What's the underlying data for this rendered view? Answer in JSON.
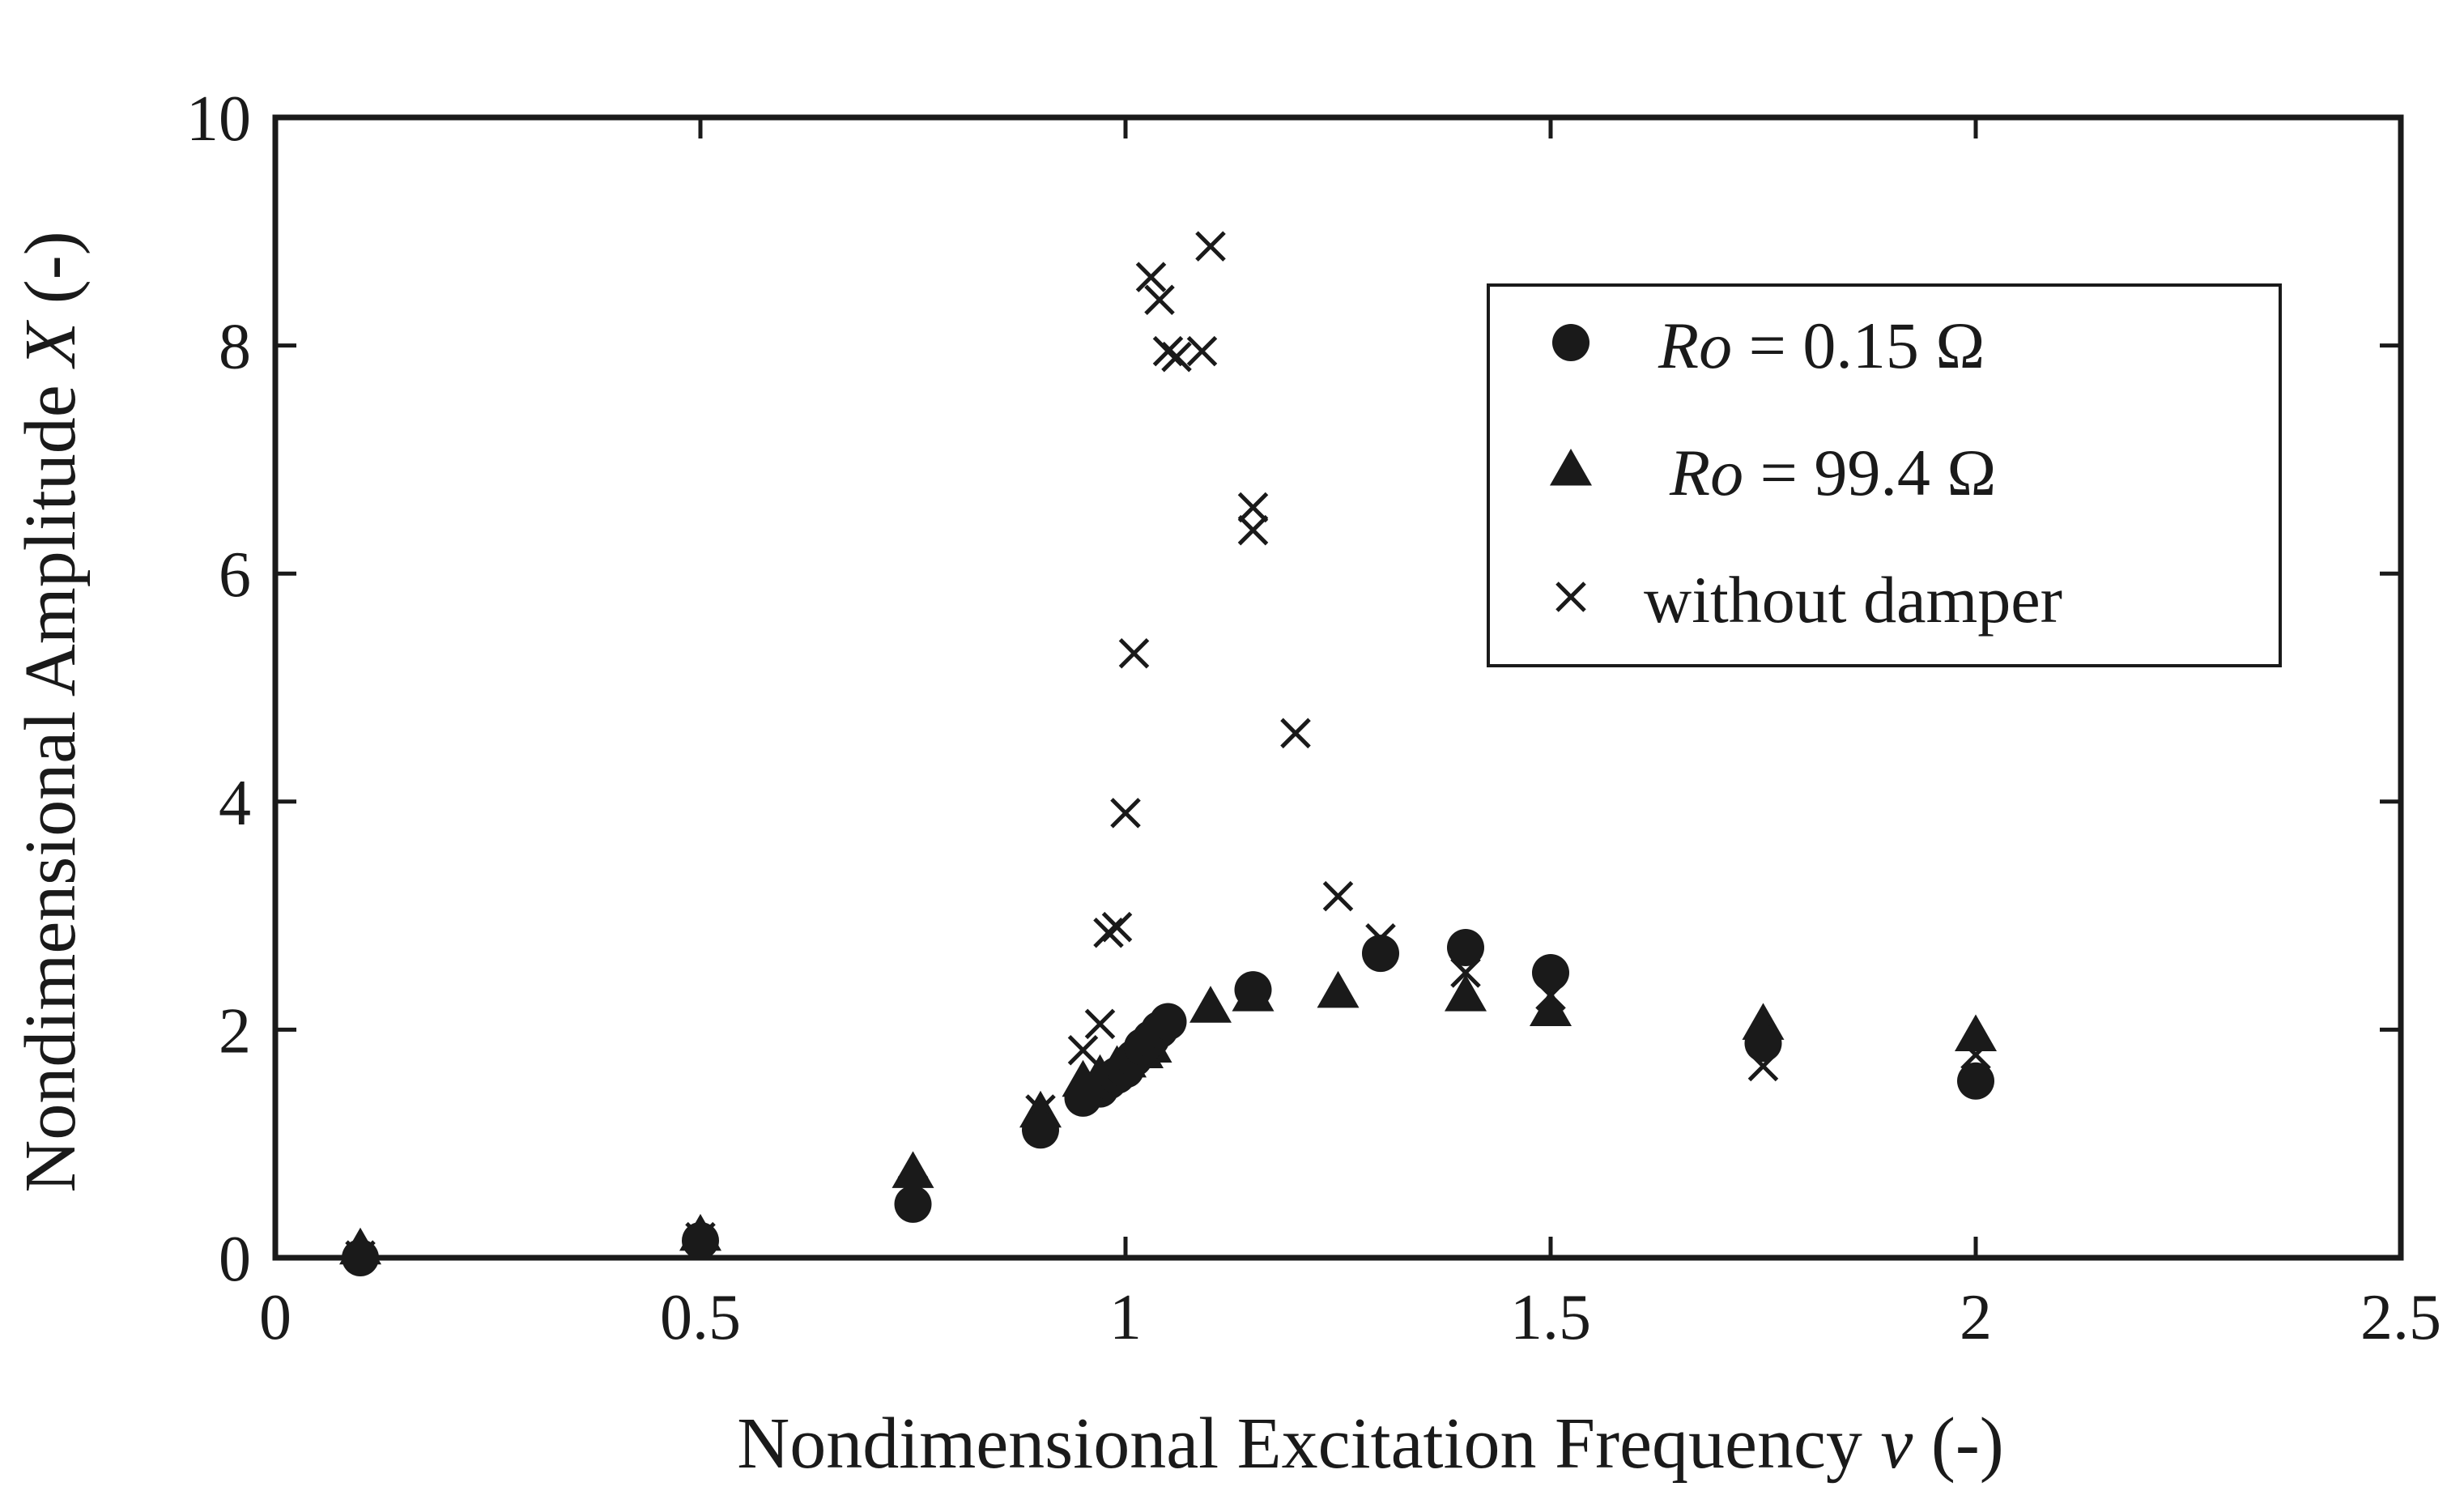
{
  "chart_data": {
    "type": "scatter",
    "title": "",
    "xlabel_main": "Nondimensional Excitation Frequency ",
    "xlabel_var": "ν",
    "xlabel_unit": " (-)",
    "ylabel_main": "Nondimensional Amplitude  ",
    "ylabel_var": "X",
    "ylabel_unit": " (-)",
    "xlim": [
      0,
      2.5
    ],
    "ylim": [
      0,
      10
    ],
    "xticks": [
      0,
      0.5,
      1,
      1.5,
      2,
      2.5
    ],
    "xtick_labels": [
      "0",
      "0.5",
      "1",
      "1.5",
      "2",
      "2.5"
    ],
    "yticks": [
      0,
      2,
      4,
      6,
      8,
      10
    ],
    "ytick_labels": [
      "0",
      "2",
      "4",
      "6",
      "8",
      "10"
    ],
    "grid": false,
    "legend_position": "top-right",
    "series": [
      {
        "name": "Ro = 0.15 Ω",
        "legend_var": "Ro",
        "legend_rest": " = 0.15 Ω",
        "marker": "circle",
        "x": [
          0.1,
          0.5,
          0.75,
          0.9,
          0.95,
          0.97,
          0.98,
          0.99,
          1.0,
          1.01,
          1.02,
          1.03,
          1.04,
          1.05,
          1.15,
          1.3,
          1.4,
          1.5,
          1.75,
          2.0
        ],
        "y": [
          0.0,
          0.15,
          0.47,
          1.12,
          1.4,
          1.48,
          1.55,
          1.6,
          1.65,
          1.75,
          1.85,
          1.92,
          2.0,
          2.07,
          2.35,
          2.67,
          2.72,
          2.5,
          1.88,
          1.55
        ]
      },
      {
        "name": "Ro = 99.4 Ω",
        "legend_var": "Ro",
        "legend_rest": " = 99.4 Ω",
        "marker": "triangle",
        "x": [
          0.1,
          0.5,
          0.75,
          0.9,
          0.95,
          0.97,
          0.99,
          1.0,
          1.02,
          1.03,
          1.1,
          1.15,
          1.25,
          1.4,
          1.5,
          1.75,
          2.0
        ],
        "y": [
          0.08,
          0.2,
          0.75,
          1.28,
          1.55,
          1.6,
          1.68,
          1.72,
          1.8,
          1.85,
          2.2,
          2.3,
          2.33,
          2.3,
          2.17,
          2.05,
          1.95
        ]
      },
      {
        "name": "without damper",
        "legend_var": "",
        "legend_rest": "without damper",
        "marker": "x",
        "x": [
          0.1,
          0.5,
          0.75,
          0.9,
          0.95,
          0.97,
          0.98,
          0.99,
          1.0,
          1.01,
          1.03,
          1.04,
          1.05,
          1.06,
          1.09,
          1.1,
          1.15,
          1.15,
          1.2,
          1.25,
          1.3,
          1.4,
          1.5,
          1.75,
          2.0
        ],
        "y": [
          0.02,
          0.18,
          0.6,
          1.3,
          1.82,
          2.05,
          2.85,
          2.9,
          3.9,
          5.3,
          8.6,
          8.4,
          7.95,
          7.9,
          7.95,
          8.87,
          6.58,
          6.38,
          4.6,
          3.17,
          2.8,
          2.5,
          2.3,
          1.68,
          1.78
        ]
      }
    ]
  }
}
